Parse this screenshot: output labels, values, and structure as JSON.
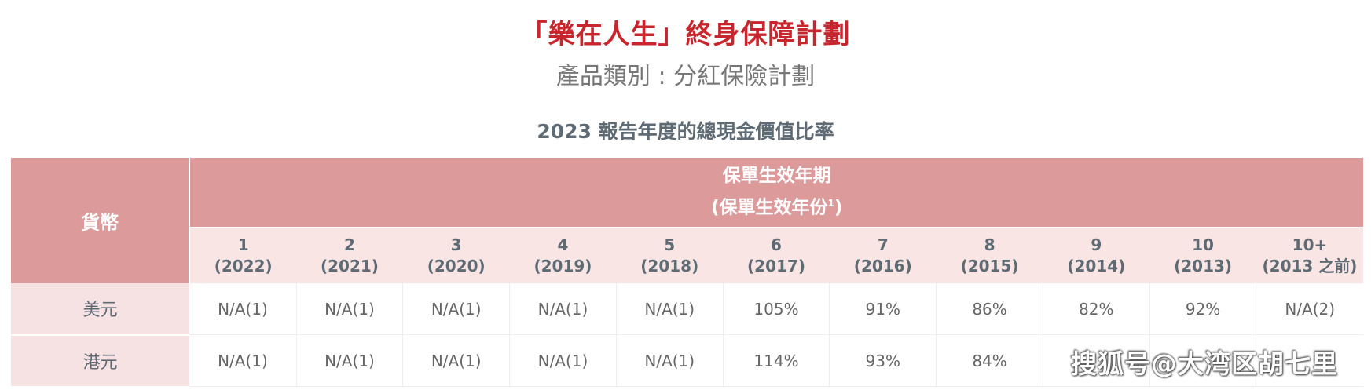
{
  "title": "「樂在人生」終身保障計劃",
  "subtitle": "產品類別 : 分紅保險計劃",
  "report_title": "2023 報告年度的總現金價值比率",
  "table": {
    "currency_header": "貨幣",
    "period_header_line1": "保單生效年期",
    "period_header_line2": "(保單生效年份",
    "period_header_sup": "1",
    "period_header_close": ")",
    "years": [
      {
        "year": "1",
        "sub": "(2022)"
      },
      {
        "year": "2",
        "sub": "(2021)"
      },
      {
        "year": "3",
        "sub": "(2020)"
      },
      {
        "year": "4",
        "sub": "(2019)"
      },
      {
        "year": "5",
        "sub": "(2018)"
      },
      {
        "year": "6",
        "sub": "(2017)"
      },
      {
        "year": "7",
        "sub": "(2016)"
      },
      {
        "year": "8",
        "sub": "(2015)"
      },
      {
        "year": "9",
        "sub": "(2014)"
      },
      {
        "year": "10",
        "sub": "(2013)"
      },
      {
        "year": "10+",
        "sub": "(2013 之前)"
      }
    ],
    "rows": [
      {
        "currency": "美元",
        "values": [
          "N/A(1)",
          "N/A(1)",
          "N/A(1)",
          "N/A(1)",
          "N/A(1)",
          "105%",
          "91%",
          "86%",
          "82%",
          "92%",
          "N/A(2)"
        ]
      },
      {
        "currency": "港元",
        "values": [
          "N/A(1)",
          "N/A(1)",
          "N/A(1)",
          "N/A(1)",
          "N/A(1)",
          "114%",
          "93%",
          "84%",
          "",
          "",
          ""
        ]
      }
    ]
  },
  "watermark": "搜狐号@大湾区胡七里",
  "colors": {
    "title_red": "#c8252c",
    "header_pink": "#dc9a9a",
    "subheader_pink": "#f8e5e4",
    "row_label_pink": "#f6e2e2",
    "text_gray": "#5f6b74"
  }
}
